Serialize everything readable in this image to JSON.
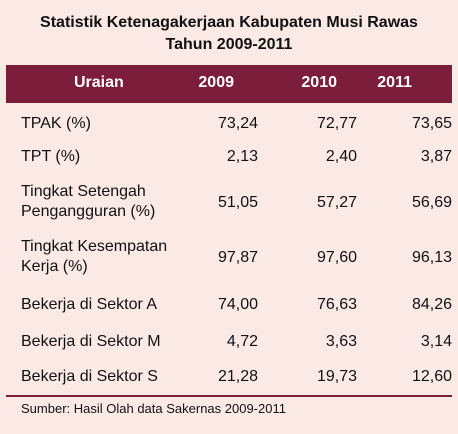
{
  "title_line1": "Statistik Ketenagakerjaan Kabupaten Musi Rawas",
  "title_line2": "Tahun 2009-2011",
  "header": {
    "label": "Uraian",
    "years": [
      "2009",
      "2010",
      "2011"
    ]
  },
  "rows": [
    {
      "label": "TPAK (%)",
      "values": [
        "73,24",
        "72,77",
        "73,65"
      ]
    },
    {
      "label": "TPT (%)",
      "values": [
        "2,13",
        "2,40",
        "3,87"
      ]
    },
    {
      "label": "Tingkat Setengah Pengangguran (%)",
      "values": [
        "51,05",
        "57,27",
        "56,69"
      ]
    },
    {
      "label": "Tingkat Kesempatan Kerja (%)",
      "values": [
        "97,87",
        "97,60",
        "96,13"
      ]
    },
    {
      "label": "Bekerja di Sektor A",
      "values": [
        "74,00",
        "76,63",
        "84,26"
      ]
    },
    {
      "label": "Bekerja di Sektor M",
      "values": [
        "4,72",
        "3,63",
        "3,14"
      ]
    },
    {
      "label": "Bekerja di Sektor S",
      "values": [
        "21,28",
        "19,73",
        "12,60"
      ]
    }
  ],
  "source": "Sumber: Hasil Olah data Sakernas 2009-2011",
  "colors": {
    "header_bg": "#7c1d3b",
    "page_bg": "#fbe9e6"
  },
  "chart_data": {
    "type": "table",
    "columns": [
      "Uraian",
      "2009",
      "2010",
      "2011"
    ],
    "rows": [
      [
        "TPAK (%)",
        73.24,
        72.77,
        73.65
      ],
      [
        "TPT (%)",
        2.13,
        2.4,
        3.87
      ],
      [
        "Tingkat Setengah Pengangguran (%)",
        51.05,
        57.27,
        56.69
      ],
      [
        "Tingkat Kesempatan Kerja (%)",
        97.87,
        97.6,
        96.13
      ],
      [
        "Bekerja di Sektor A",
        74.0,
        76.63,
        84.26
      ],
      [
        "Bekerja di Sektor M",
        4.72,
        3.63,
        3.14
      ],
      [
        "Bekerja di Sektor S",
        21.28,
        19.73,
        12.6
      ]
    ]
  }
}
